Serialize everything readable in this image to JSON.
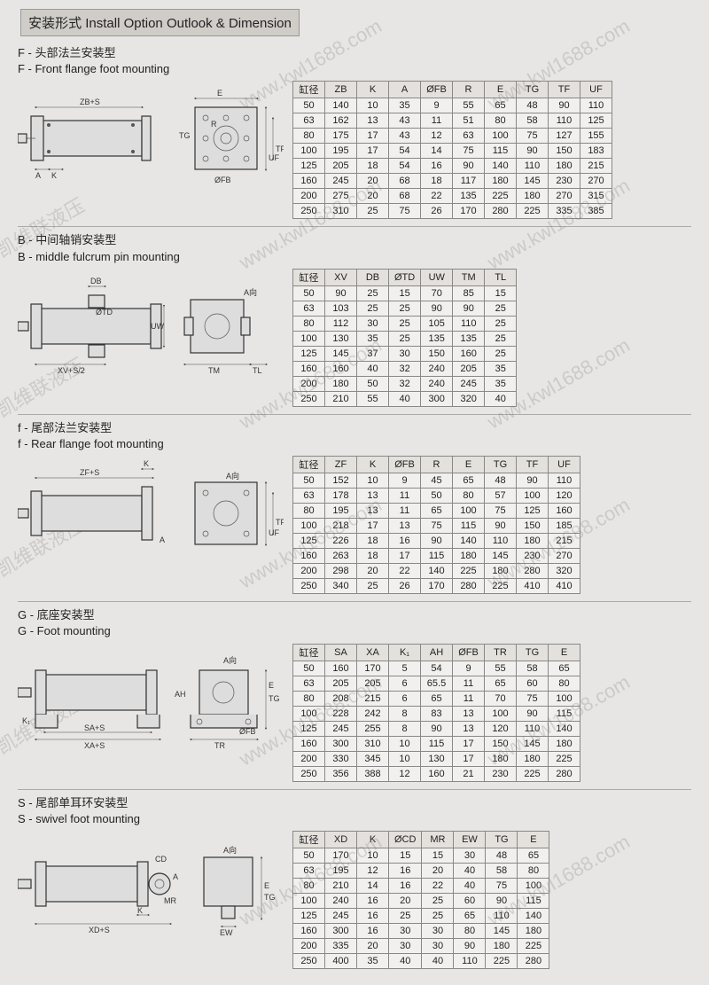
{
  "page_title": "安装形式 Install Option Outlook & Dimension",
  "watermark": "www.kwl1688.com",
  "watermark_zh": "凯维联液压",
  "table_bg": "#f2f0ee",
  "border_color": "#888",
  "sections": {
    "F": {
      "zh": "F - 头部法兰安装型",
      "en": "F - Front flange foot mounting",
      "headers": [
        "缸径",
        "ZB",
        "K",
        "A",
        "ØFB",
        "R",
        "E",
        "TG",
        "TF",
        "UF"
      ],
      "rows": [
        [
          50,
          140,
          10,
          35,
          9,
          55,
          65,
          48,
          90,
          110
        ],
        [
          63,
          162,
          13,
          43,
          11,
          51,
          80,
          58,
          110,
          125
        ],
        [
          80,
          175,
          17,
          43,
          12,
          63,
          100,
          75,
          127,
          155
        ],
        [
          100,
          195,
          17,
          54,
          14,
          75,
          115,
          90,
          150,
          183
        ],
        [
          125,
          205,
          18,
          54,
          16,
          90,
          140,
          110,
          180,
          215
        ],
        [
          160,
          245,
          20,
          68,
          18,
          117,
          180,
          145,
          230,
          270
        ],
        [
          200,
          275,
          20,
          68,
          22,
          135,
          225,
          180,
          270,
          315
        ],
        [
          250,
          310,
          25,
          75,
          26,
          170,
          280,
          225,
          335,
          385
        ]
      ]
    },
    "B": {
      "zh": "B - 中间轴销安装型",
      "en": "B - middle fulcrum pin mounting",
      "headers": [
        "缸径",
        "XV",
        "DB",
        "ØTD",
        "UW",
        "TM",
        "TL"
      ],
      "rows": [
        [
          50,
          90,
          25,
          15,
          70,
          85,
          15
        ],
        [
          63,
          103,
          25,
          25,
          90,
          90,
          25
        ],
        [
          80,
          112,
          30,
          25,
          105,
          110,
          25
        ],
        [
          100,
          130,
          35,
          25,
          135,
          135,
          25
        ],
        [
          125,
          145,
          37,
          30,
          150,
          160,
          25
        ],
        [
          160,
          160,
          40,
          32,
          240,
          205,
          35
        ],
        [
          200,
          180,
          50,
          32,
          240,
          245,
          35
        ],
        [
          250,
          210,
          55,
          40,
          300,
          320,
          40
        ]
      ]
    },
    "f": {
      "zh": "f - 尾部法兰安装型",
      "en": "f - Rear flange foot mounting",
      "headers": [
        "缸径",
        "ZF",
        "K",
        "ØFB",
        "R",
        "E",
        "TG",
        "TF",
        "UF"
      ],
      "rows": [
        [
          50,
          152,
          10,
          9,
          45,
          65,
          48,
          90,
          110
        ],
        [
          63,
          178,
          13,
          11,
          50,
          80,
          57,
          100,
          120
        ],
        [
          80,
          195,
          13,
          11,
          65,
          100,
          75,
          125,
          160
        ],
        [
          100,
          218,
          17,
          13,
          75,
          115,
          90,
          150,
          185
        ],
        [
          125,
          226,
          18,
          16,
          90,
          140,
          110,
          180,
          215
        ],
        [
          160,
          263,
          18,
          17,
          115,
          180,
          145,
          230,
          270
        ],
        [
          200,
          298,
          20,
          22,
          140,
          225,
          180,
          280,
          320
        ],
        [
          250,
          340,
          25,
          26,
          170,
          280,
          225,
          410,
          410
        ]
      ]
    },
    "G": {
      "zh": "G - 底座安装型",
      "en": "G - Foot mounting",
      "headers": [
        "缸径",
        "SA",
        "XA",
        "K₁",
        "AH",
        "ØFB",
        "TR",
        "TG",
        "E"
      ],
      "rows": [
        [
          50,
          160,
          170,
          5,
          54,
          9,
          55,
          58,
          65
        ],
        [
          63,
          205,
          205,
          6,
          65.5,
          11,
          65,
          60,
          80
        ],
        [
          80,
          208,
          215,
          6,
          65,
          11,
          70,
          75,
          100
        ],
        [
          100,
          228,
          242,
          8,
          83,
          13,
          100,
          90,
          115
        ],
        [
          125,
          245,
          255,
          8,
          90,
          13,
          120,
          110,
          140
        ],
        [
          160,
          300,
          310,
          10,
          115,
          17,
          150,
          145,
          180
        ],
        [
          200,
          330,
          345,
          10,
          130,
          17,
          180,
          180,
          225
        ],
        [
          250,
          356,
          388,
          12,
          160,
          21,
          230,
          225,
          280
        ]
      ]
    },
    "S": {
      "zh": "S - 尾部单耳环安装型",
      "en": "S - swivel foot mounting",
      "headers": [
        "缸径",
        "XD",
        "K",
        "ØCD",
        "MR",
        "EW",
        "TG",
        "E"
      ],
      "rows": [
        [
          50,
          170,
          10,
          15,
          15,
          30,
          48,
          65
        ],
        [
          63,
          195,
          12,
          16,
          20,
          40,
          58,
          80
        ],
        [
          80,
          210,
          14,
          16,
          22,
          40,
          75,
          100
        ],
        [
          100,
          240,
          16,
          20,
          25,
          60,
          90,
          115
        ],
        [
          125,
          245,
          16,
          25,
          25,
          65,
          110,
          140
        ],
        [
          160,
          300,
          16,
          30,
          30,
          80,
          145,
          180
        ],
        [
          200,
          335,
          20,
          30,
          30,
          90,
          180,
          225
        ],
        [
          250,
          400,
          35,
          40,
          40,
          110,
          225,
          280
        ]
      ]
    }
  }
}
